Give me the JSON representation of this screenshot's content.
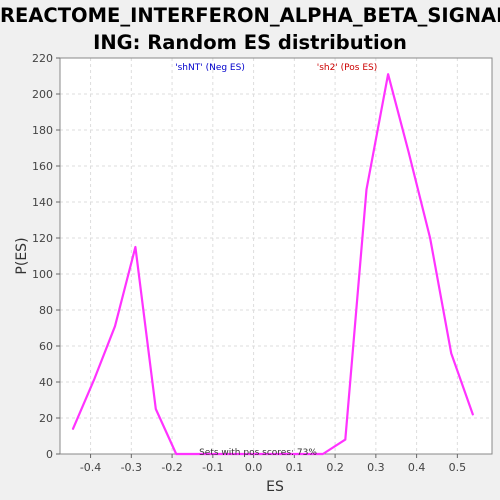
{
  "chart_data": {
    "type": "line",
    "title_lines": [
      "REACTOME_INTERFERON_ALPHA_BETA_SIGNAL",
      "ING: Random ES distribution"
    ],
    "xlabel": "ES",
    "ylabel": "P(ES)",
    "xlim": [
      -0.475,
      0.585
    ],
    "ylim": [
      0,
      220
    ],
    "xticks": [
      -0.4,
      -0.3,
      -0.2,
      -0.1,
      0.0,
      0.1,
      0.2,
      0.3,
      0.4,
      0.5
    ],
    "xtick_labels": [
      "-0.4",
      "-0.3",
      "-0.2",
      "-0.1",
      "0.0",
      "0.1",
      "0.2",
      "0.3",
      "0.4",
      "0.5"
    ],
    "yticks": [
      0,
      20,
      40,
      60,
      80,
      100,
      120,
      140,
      160,
      180,
      200,
      220
    ],
    "ytick_labels": [
      "0",
      "20",
      "40",
      "60",
      "80",
      "100",
      "120",
      "140",
      "160",
      "180",
      "200",
      "220"
    ],
    "grid": true,
    "colors": {
      "line": "#ff33ff",
      "neg_label": "#0000cc",
      "pos_label": "#cc0000"
    },
    "annotations": {
      "neg": "'shNT' (Neg ES)",
      "pos": "'sh2' (Pos ES)",
      "bottom": "Sets with pos scores: 73%"
    },
    "series": [
      {
        "x": [
          -0.443,
          -0.39,
          -0.34,
          -0.29,
          -0.24,
          -0.19,
          -0.14,
          -0.09,
          0.17,
          0.225,
          0.277,
          0.33,
          0.38,
          0.433,
          0.485,
          0.538
        ],
        "y": [
          14,
          42,
          71,
          115,
          25,
          0,
          0,
          0,
          0,
          8,
          147,
          211,
          168,
          120,
          56,
          22
        ]
      }
    ]
  }
}
